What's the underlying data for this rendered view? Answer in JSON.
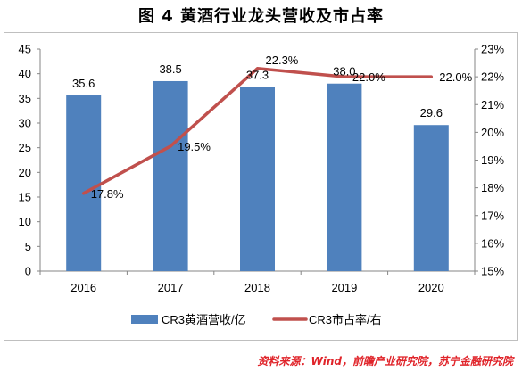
{
  "title": "图 4  黄酒行业龙头营收及市占率",
  "source": "资料来源：Wind，前瞻产业研究院，苏宁金融研究院",
  "colors": {
    "bar": "#4f81bd",
    "line": "#c0504d",
    "source": "#e0242a"
  },
  "chart_data": {
    "type": "bar",
    "categories": [
      "2016",
      "2017",
      "2018",
      "2019",
      "2020"
    ],
    "series": [
      {
        "name": "CR3黄酒营收/亿",
        "type": "bar",
        "axis": "left",
        "values": [
          35.6,
          38.5,
          37.3,
          38.0,
          29.6
        ],
        "labels": [
          "35.6",
          "38.5",
          "37.3",
          "38.0",
          "29.6"
        ]
      },
      {
        "name": "CR3市占率/右",
        "type": "line",
        "axis": "right",
        "values": [
          17.8,
          19.5,
          22.3,
          22.0,
          22.0
        ],
        "labels": [
          "17.8%",
          "19.5%",
          "22.3%",
          "22.0%",
          "22.0%"
        ]
      }
    ],
    "y_left": {
      "ylim": [
        0,
        45
      ],
      "ticks": [
        "0",
        "5",
        "10",
        "15",
        "20",
        "25",
        "30",
        "35",
        "40",
        "45"
      ]
    },
    "y_right": {
      "ylim": [
        15,
        23
      ],
      "ticks": [
        "15%",
        "16%",
        "17%",
        "18%",
        "19%",
        "20%",
        "21%",
        "22%",
        "23%"
      ]
    },
    "grid": false,
    "legend": "bottom"
  }
}
